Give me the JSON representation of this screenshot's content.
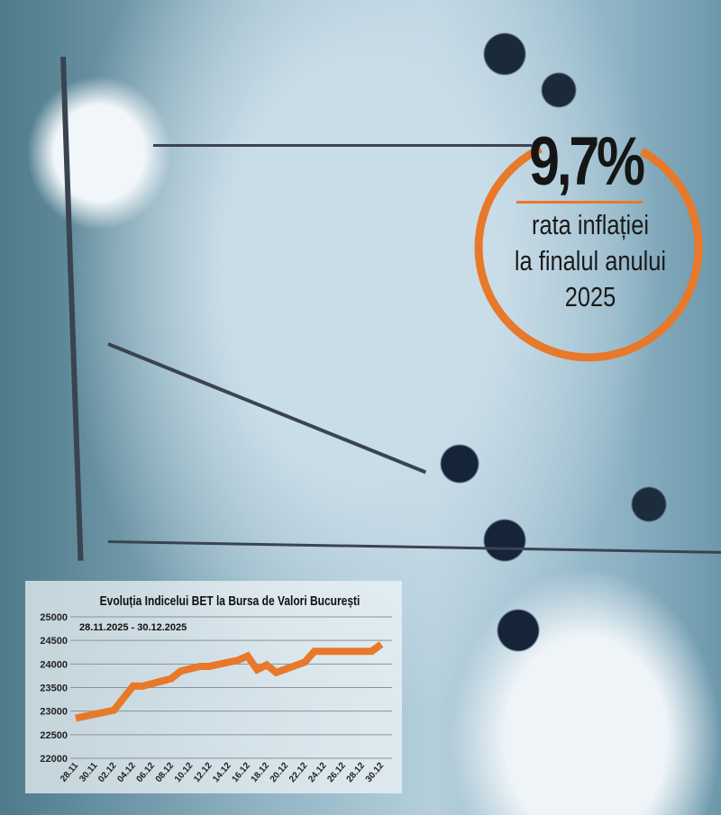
{
  "callout": {
    "value": "9,7%",
    "line1": "rata inflației",
    "line2": "la finalul anului",
    "line3": "2025",
    "accent": "#e8782a"
  },
  "chart_data": {
    "type": "line",
    "title": "Evoluția Indicelui BET la Bursa de Valori București",
    "subtitle": "28.11.2025 - 30.12.2025",
    "xlabel": "",
    "ylabel": "",
    "ylim": [
      22000,
      25000
    ],
    "yticks": [
      "25000",
      "24500",
      "24000",
      "23500",
      "23000",
      "22500",
      "22000"
    ],
    "xticks": [
      "28.11",
      "30.11",
      "02.12",
      "04.12",
      "06.12",
      "08.12",
      "10.12",
      "12.12",
      "14.12",
      "16.12",
      "18.12",
      "20.12",
      "22.12",
      "24.12",
      "26.12",
      "28.12",
      "30.12"
    ],
    "grid": true,
    "color": "#e8782a",
    "points": [
      {
        "x": "28.11",
        "y": 22850
      },
      {
        "x": "02.12",
        "y": 23020
      },
      {
        "x": "04.12",
        "y": 23530
      },
      {
        "x": "05.12",
        "y": 23530
      },
      {
        "x": "08.12",
        "y": 23690
      },
      {
        "x": "09.12",
        "y": 23850
      },
      {
        "x": "11.12",
        "y": 23950
      },
      {
        "x": "12.12",
        "y": 23950
      },
      {
        "x": "15.12",
        "y": 24080
      },
      {
        "x": "16.12",
        "y": 24170
      },
      {
        "x": "17.12",
        "y": 23880
      },
      {
        "x": "18.12",
        "y": 23980
      },
      {
        "x": "19.12",
        "y": 23820
      },
      {
        "x": "22.12",
        "y": 24040
      },
      {
        "x": "23.12",
        "y": 24270
      },
      {
        "x": "29.12",
        "y": 24270
      },
      {
        "x": "30.12",
        "y": 24420
      }
    ]
  }
}
